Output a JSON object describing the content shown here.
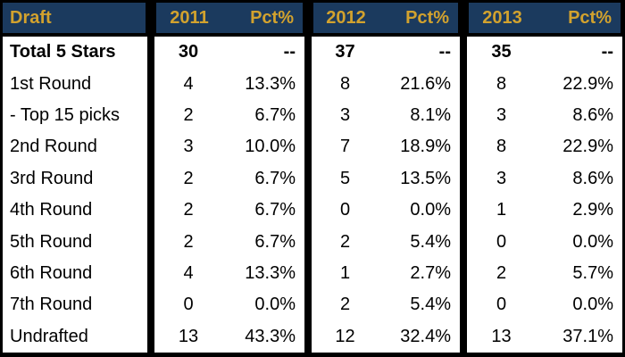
{
  "table": {
    "header": {
      "label": "Draft",
      "groups": [
        {
          "year": "2011",
          "pct": "Pct%"
        },
        {
          "year": "2012",
          "pct": "Pct%"
        },
        {
          "year": "2013",
          "pct": "Pct%"
        }
      ]
    },
    "rows": [
      {
        "label": "Total 5 Stars",
        "bold": true,
        "values": [
          "30",
          "--",
          "37",
          "--",
          "35",
          "--"
        ]
      },
      {
        "label": "1st Round",
        "bold": false,
        "values": [
          "4",
          "13.3%",
          "8",
          "21.6%",
          "8",
          "22.9%"
        ]
      },
      {
        "label": "- Top 15 picks",
        "bold": false,
        "values": [
          "2",
          "6.7%",
          "3",
          "8.1%",
          "3",
          "8.6%"
        ]
      },
      {
        "label": "2nd Round",
        "bold": false,
        "values": [
          "3",
          "10.0%",
          "7",
          "18.9%",
          "8",
          "22.9%"
        ]
      },
      {
        "label": "3rd Round",
        "bold": false,
        "values": [
          "2",
          "6.7%",
          "5",
          "13.5%",
          "3",
          "8.6%"
        ]
      },
      {
        "label": "4th Round",
        "bold": false,
        "values": [
          "2",
          "6.7%",
          "0",
          "0.0%",
          "1",
          "2.9%"
        ]
      },
      {
        "label": "5th Round",
        "bold": false,
        "values": [
          "2",
          "6.7%",
          "2",
          "5.4%",
          "0",
          "0.0%"
        ]
      },
      {
        "label": "6th Round",
        "bold": false,
        "values": [
          "4",
          "13.3%",
          "1",
          "2.7%",
          "2",
          "5.7%"
        ]
      },
      {
        "label": "7th Round",
        "bold": false,
        "values": [
          "0",
          "0.0%",
          "2",
          "5.4%",
          "0",
          "0.0%"
        ]
      },
      {
        "label": "Undrafted",
        "bold": false,
        "values": [
          "13",
          "43.3%",
          "12",
          "32.4%",
          "13",
          "37.1%"
        ]
      }
    ],
    "colors": {
      "header_bg": "#1b3a5e",
      "header_text": "#d2a22e",
      "border": "#000000",
      "body_bg": "#ffffff",
      "body_text": "#000000"
    }
  },
  "chart_data": {
    "type": "table",
    "title": "Draft",
    "categories": [
      "Total 5 Stars",
      "1st Round",
      "- Top 15 picks",
      "2nd Round",
      "3rd Round",
      "4th Round",
      "5th Round",
      "6th Round",
      "7th Round",
      "Undrafted"
    ],
    "series": [
      {
        "name": "2011",
        "values": [
          30,
          4,
          2,
          3,
          2,
          2,
          2,
          4,
          0,
          13
        ],
        "pct": [
          "--",
          "13.3%",
          "6.7%",
          "10.0%",
          "6.7%",
          "6.7%",
          "6.7%",
          "13.3%",
          "0.0%",
          "43.3%"
        ]
      },
      {
        "name": "2012",
        "values": [
          37,
          8,
          3,
          7,
          5,
          0,
          2,
          1,
          2,
          12
        ],
        "pct": [
          "--",
          "21.6%",
          "8.1%",
          "18.9%",
          "13.5%",
          "0.0%",
          "5.4%",
          "2.7%",
          "5.4%",
          "32.4%"
        ]
      },
      {
        "name": "2013",
        "values": [
          35,
          8,
          3,
          8,
          3,
          1,
          0,
          2,
          0,
          13
        ],
        "pct": [
          "--",
          "22.9%",
          "8.6%",
          "22.9%",
          "8.6%",
          "2.9%",
          "0.0%",
          "5.7%",
          "0.0%",
          "37.1%"
        ]
      }
    ],
    "layout": {
      "grid": false,
      "column_groups_separated_by_black_dividers": true,
      "first_row_bold": true
    }
  }
}
